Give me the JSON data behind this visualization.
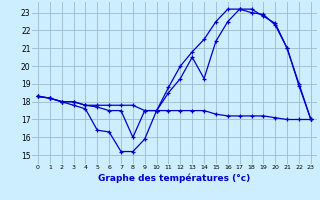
{
  "xlabel": "Graphe des températures (°c)",
  "bg_color": "#cceeff",
  "grid_color": "#99bbcc",
  "line_color": "#0000cc",
  "ylim": [
    14.5,
    23.6
  ],
  "xlim": [
    -0.5,
    23.5
  ],
  "yticks": [
    15,
    16,
    17,
    18,
    19,
    20,
    21,
    22,
    23
  ],
  "xticks": [
    0,
    1,
    2,
    3,
    4,
    5,
    6,
    7,
    8,
    9,
    10,
    11,
    12,
    13,
    14,
    15,
    16,
    17,
    18,
    19,
    20,
    21,
    22,
    23
  ],
  "line1": {
    "x": [
      0,
      1,
      2,
      3,
      4,
      5,
      6,
      7,
      8,
      9,
      10,
      11,
      12,
      13,
      14,
      15,
      16,
      17,
      18,
      19,
      20,
      21,
      22,
      23
    ],
    "y": [
      18.3,
      18.2,
      18.0,
      17.8,
      17.6,
      16.4,
      16.3,
      15.2,
      15.2,
      15.9,
      17.5,
      17.5,
      17.5,
      17.5,
      17.5,
      17.3,
      17.2,
      17.2,
      17.2,
      17.2,
      17.1,
      17.0,
      17.0,
      17.0
    ]
  },
  "line2": {
    "x": [
      0,
      1,
      2,
      3,
      4,
      5,
      6,
      7,
      8,
      9,
      10,
      11,
      12,
      13,
      14,
      15,
      16,
      17,
      18,
      19,
      20,
      21,
      22,
      23
    ],
    "y": [
      18.3,
      18.2,
      18.0,
      18.0,
      17.8,
      17.7,
      17.5,
      17.5,
      16.0,
      17.5,
      17.5,
      18.5,
      19.3,
      20.5,
      19.3,
      21.4,
      22.5,
      23.2,
      23.2,
      22.8,
      22.4,
      21.0,
      18.9,
      17.0
    ]
  },
  "line3": {
    "x": [
      0,
      1,
      2,
      3,
      4,
      5,
      6,
      7,
      8,
      9,
      10,
      11,
      12,
      13,
      14,
      15,
      16,
      17,
      18,
      19,
      20,
      21,
      22,
      23
    ],
    "y": [
      18.3,
      18.2,
      18.0,
      18.0,
      17.8,
      17.8,
      17.8,
      17.8,
      17.8,
      17.5,
      17.5,
      18.8,
      20.0,
      20.8,
      21.5,
      22.5,
      23.2,
      23.2,
      23.0,
      22.9,
      22.3,
      21.0,
      19.0,
      17.0
    ]
  }
}
